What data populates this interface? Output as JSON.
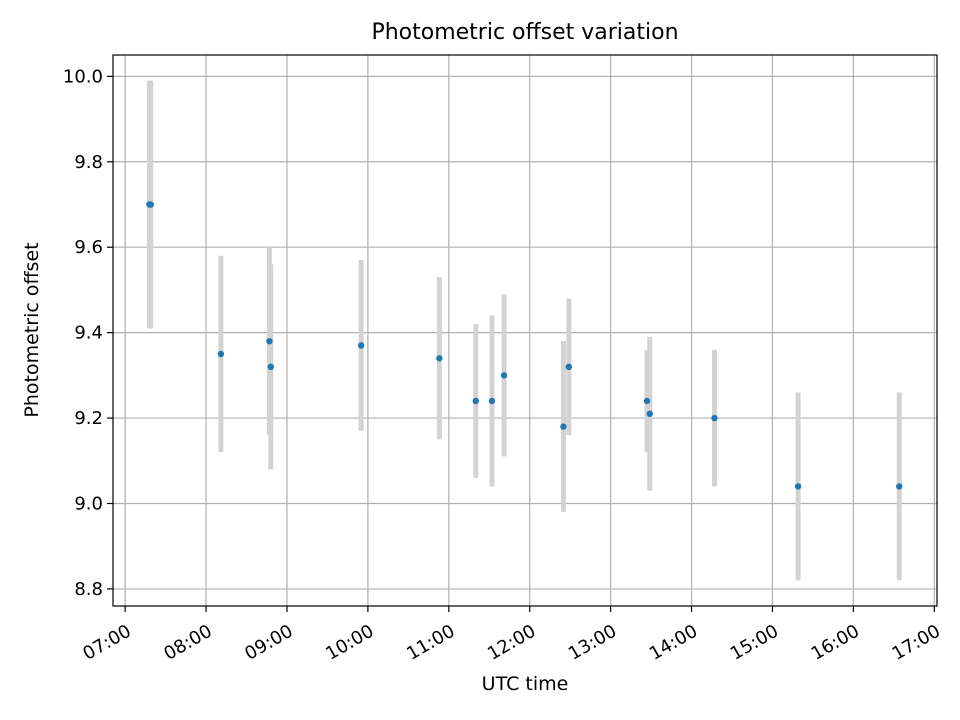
{
  "chart_data": {
    "type": "scatter",
    "title": "Photometric offset variation",
    "xlabel": "UTC time",
    "ylabel": "Photometric offset",
    "xlim": [
      "06:51",
      "17:02"
    ],
    "ylim": [
      8.76,
      10.05
    ],
    "x_ticks": [
      "07:00",
      "08:00",
      "09:00",
      "10:00",
      "11:00",
      "12:00",
      "13:00",
      "14:00",
      "15:00",
      "16:00",
      "17:00"
    ],
    "y_ticks": [
      8.8,
      9.0,
      9.2,
      9.4,
      9.6,
      9.8,
      10.0
    ],
    "grid": true,
    "colors": {
      "points": "#1f77b4",
      "error_bars": "#d3d3d3",
      "grid": "#b0b0b0"
    },
    "points": [
      {
        "x": "07:18",
        "y": 9.7,
        "yerr": 0.29
      },
      {
        "x": "07:19",
        "y": 9.7,
        "yerr": 0.29
      },
      {
        "x": "08:11",
        "y": 9.35,
        "yerr": 0.23
      },
      {
        "x": "08:47",
        "y": 9.38,
        "yerr": 0.22
      },
      {
        "x": "08:48",
        "y": 9.32,
        "yerr": 0.24
      },
      {
        "x": "09:55",
        "y": 9.37,
        "yerr": 0.2
      },
      {
        "x": "10:53",
        "y": 9.34,
        "yerr": 0.19
      },
      {
        "x": "11:20",
        "y": 9.24,
        "yerr": 0.18
      },
      {
        "x": "11:32",
        "y": 9.24,
        "yerr": 0.2
      },
      {
        "x": "11:41",
        "y": 9.3,
        "yerr": 0.19
      },
      {
        "x": "12:25",
        "y": 9.18,
        "yerr": 0.2
      },
      {
        "x": "12:29",
        "y": 9.32,
        "yerr": 0.16
      },
      {
        "x": "13:27",
        "y": 9.24,
        "yerr": 0.12
      },
      {
        "x": "13:29",
        "y": 9.21,
        "yerr": 0.18
      },
      {
        "x": "14:17",
        "y": 9.2,
        "yerr": 0.16
      },
      {
        "x": "15:19",
        "y": 9.04,
        "yerr": 0.22
      },
      {
        "x": "16:34",
        "y": 9.04,
        "yerr": 0.22
      }
    ]
  }
}
